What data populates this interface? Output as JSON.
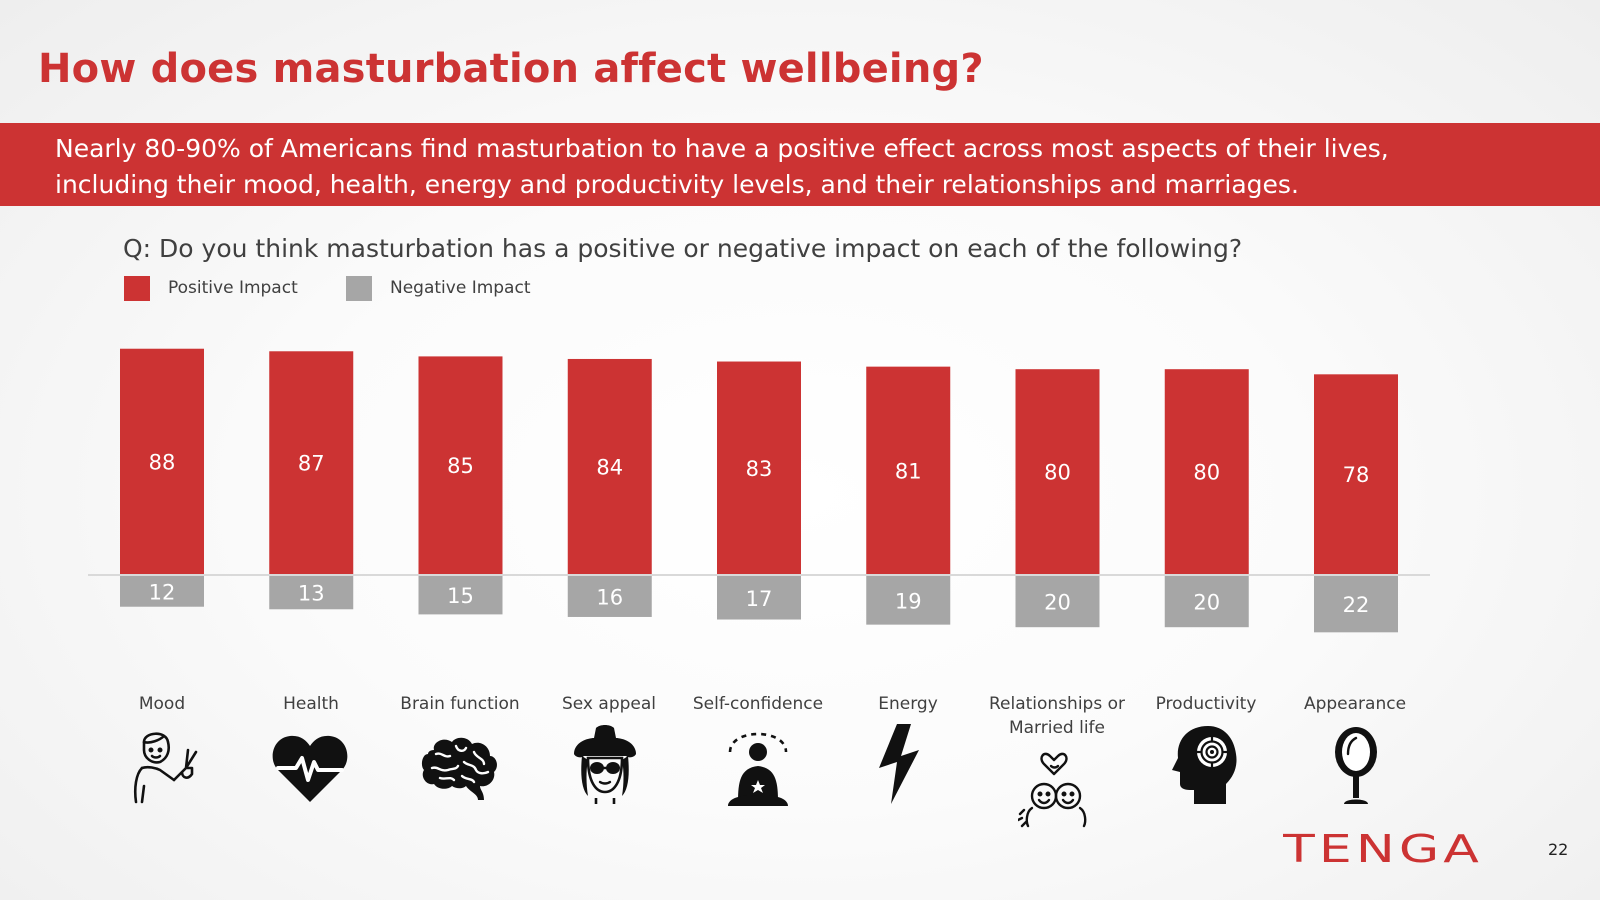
{
  "title": "How does masturbation affect wellbeing?",
  "banner": {
    "line1": "Nearly 80-90% of Americans find masturbation to have a positive effect across most aspects of their lives,",
    "line2": "including their mood, health, energy and productivity levels, and their relationships and marriages."
  },
  "question": "Q: Do you think masturbation has a positive or negative impact on each of the following?",
  "legend": {
    "positive_label": "Positive Impact",
    "negative_label": "Negative Impact"
  },
  "colors": {
    "accent": "#cc3333",
    "negative": "#a6a6a6",
    "text": "#404040"
  },
  "chart_data": {
    "type": "bar",
    "title": "Q: Do you think masturbation has a positive or negative impact on each of the following?",
    "categories": [
      "Mood",
      "Health",
      "Brain function",
      "Sex appeal",
      "Self-confidence",
      "Energy",
      "Relationships or Married life",
      "Productivity",
      "Appearance"
    ],
    "series": [
      {
        "name": "Positive Impact",
        "values": [
          88,
          87,
          85,
          84,
          83,
          81,
          80,
          80,
          78
        ]
      },
      {
        "name": "Negative Impact",
        "values": [
          12,
          13,
          15,
          16,
          17,
          19,
          20,
          20,
          22
        ]
      }
    ],
    "layout": "diverging: positive above baseline, negative below",
    "xlabel": "",
    "ylabel": "",
    "ylim": [
      -22,
      88
    ],
    "grid": false,
    "legend": "top-left"
  },
  "category_labels": {
    "c0": "Mood",
    "c1": "Health",
    "c2": "Brain function",
    "c3": "Sex appeal",
    "c4": "Self-confidence",
    "c5": "Energy",
    "c6_line1": "Relationships or",
    "c6_line2": "Married life",
    "c7": "Productivity",
    "c8": "Appearance"
  },
  "icons": [
    "peace-sign-person-icon",
    "heartbeat-icon",
    "brain-icon",
    "woman-with-hat-icon",
    "meditating-person-icon",
    "lightning-bolt-icon",
    "couple-with-heart-icon",
    "head-with-target-icon",
    "hand-mirror-icon"
  ],
  "logo_text": "TENGA",
  "page_number": "22"
}
